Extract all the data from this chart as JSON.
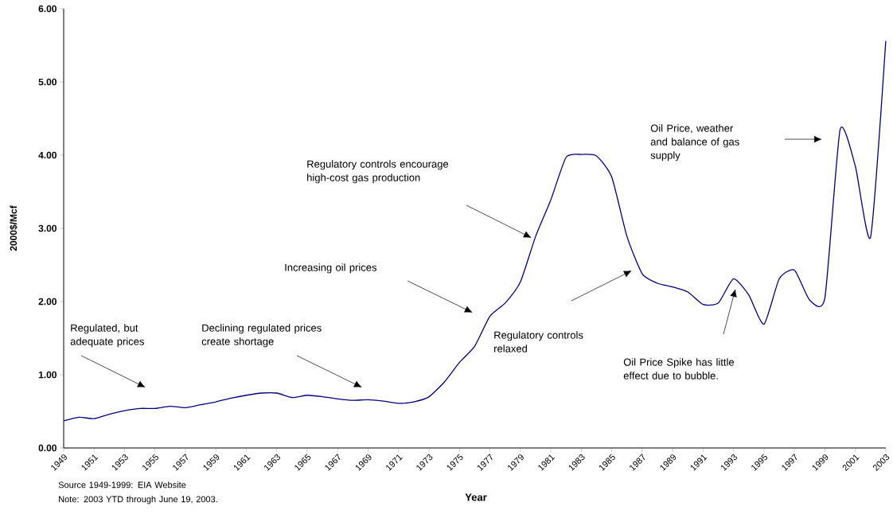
{
  "chart_data": {
    "type": "line",
    "xlabel": "Year",
    "ylabel": "2000$/Mcf",
    "color": "#000080",
    "x": [
      1949,
      1950,
      1951,
      1952,
      1953,
      1954,
      1955,
      1956,
      1957,
      1958,
      1959,
      1960,
      1961,
      1962,
      1963,
      1964,
      1965,
      1966,
      1967,
      1968,
      1969,
      1970,
      1971,
      1972,
      1973,
      1974,
      1975,
      1976,
      1977,
      1978,
      1979,
      1980,
      1981,
      1982,
      1983,
      1984,
      1985,
      1986,
      1987,
      1988,
      1989,
      1990,
      1991,
      1992,
      1993,
      1994,
      1995,
      1996,
      1997,
      1998,
      1999,
      2000,
      2001,
      2002,
      2003
    ],
    "values": [
      0.37,
      0.42,
      0.4,
      0.46,
      0.51,
      0.54,
      0.54,
      0.57,
      0.55,
      0.59,
      0.63,
      0.68,
      0.72,
      0.75,
      0.75,
      0.69,
      0.72,
      0.7,
      0.67,
      0.65,
      0.66,
      0.64,
      0.61,
      0.63,
      0.7,
      0.9,
      1.17,
      1.39,
      1.8,
      1.98,
      2.27,
      2.89,
      3.39,
      3.97,
      4.01,
      3.99,
      3.7,
      2.89,
      2.38,
      2.25,
      2.2,
      2.13,
      1.96,
      1.98,
      2.31,
      2.09,
      1.69,
      2.31,
      2.43,
      2.02,
      2.05,
      4.35,
      3.85,
      2.88,
      5.56
    ],
    "xlim": [
      1949,
      2003
    ],
    "ylim": [
      0,
      6
    ],
    "xticks": [
      1949,
      1951,
      1953,
      1955,
      1957,
      1959,
      1961,
      1963,
      1965,
      1967,
      1969,
      1971,
      1973,
      1975,
      1977,
      1979,
      1981,
      1983,
      1985,
      1987,
      1989,
      1991,
      1993,
      1995,
      1997,
      1999,
      2001,
      2003
    ],
    "yticks": [
      {
        "value": 0,
        "label": "0.00"
      },
      {
        "value": 1,
        "label": "1.00"
      },
      {
        "value": 2,
        "label": "2.00"
      },
      {
        "value": 3,
        "label": "3.00"
      },
      {
        "value": 4,
        "label": "4.00"
      },
      {
        "value": 5,
        "label": "5.00"
      },
      {
        "value": 6,
        "label": "6.00"
      }
    ],
    "annotations": [
      "Regulated, but adequate prices",
      "Declining regulated prices create shortage",
      "Increasing oil prices",
      "Regulatory controls encourage high-cost gas production",
      "Regulatory controls relaxed",
      "Oil Price Spike has little effect due to bubble.",
      "Oil Price,  weather and balance of gas supply",
      "Source 1949-1999: EIA Website",
      "Note: 2003 YTD through June 19, 2003."
    ]
  }
}
